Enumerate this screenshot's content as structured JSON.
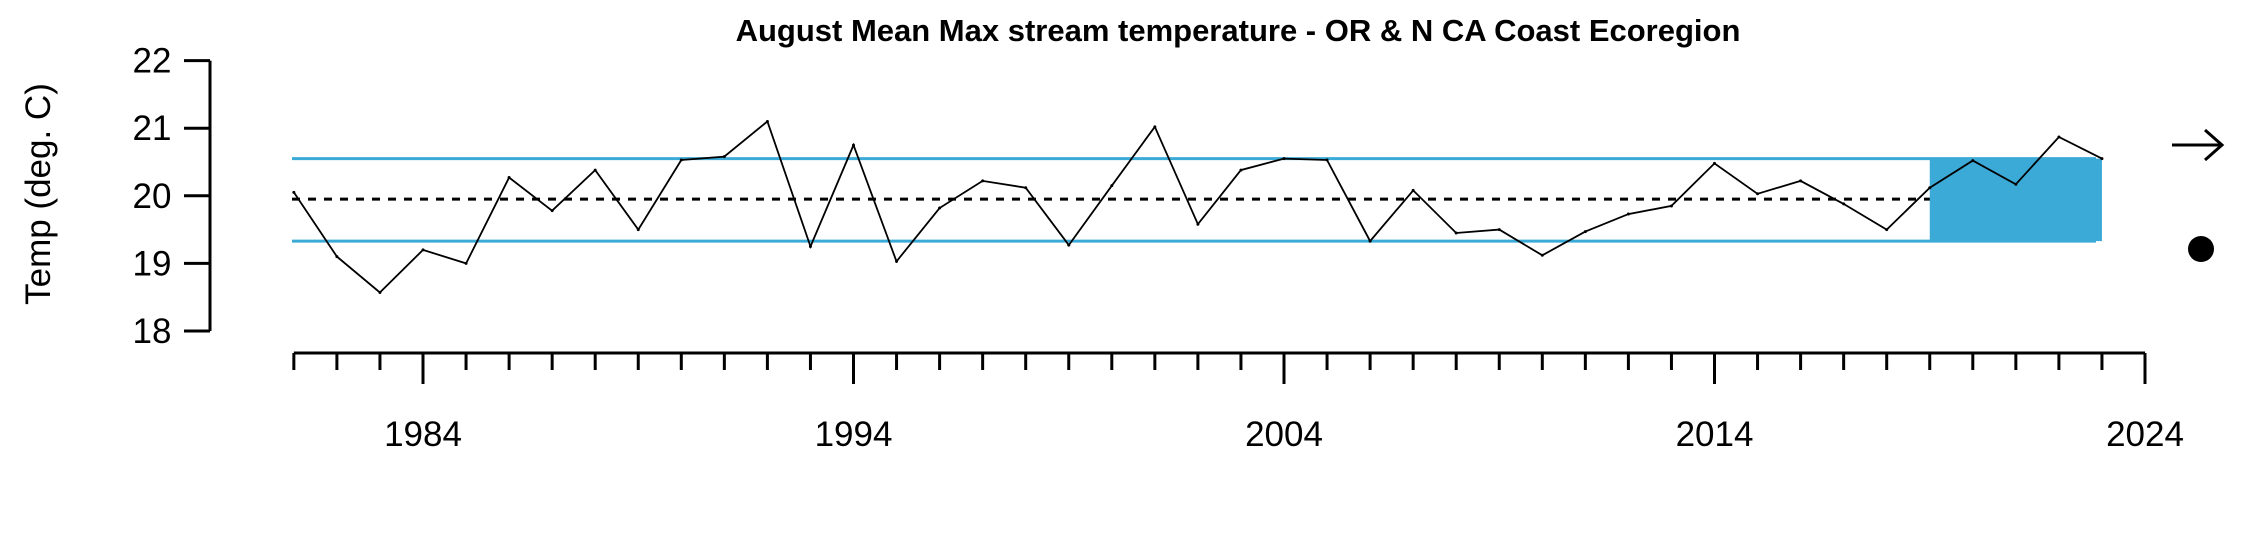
{
  "chart_data": {
    "type": "line",
    "title": "August Mean Max stream temperature - OR & N CA Coast Ecoregion",
    "xlabel": "",
    "ylabel": "Temp (deg. C)",
    "xlim": [
      1980,
      2024
    ],
    "ylim": [
      18,
      22
    ],
    "x_ticks_major": [
      1984,
      1994,
      2004,
      2014,
      2024
    ],
    "x_tick_labels": [
      "1984",
      "1994",
      "2004",
      "2014",
      "2024"
    ],
    "x_ticks_minor_step": 1,
    "y_ticks": [
      18,
      19,
      20,
      21,
      22
    ],
    "y_tick_labels": [
      "18",
      "19",
      "20",
      "21",
      "22"
    ],
    "grid": false,
    "series": [
      {
        "x": [
          1981,
          1982,
          1983,
          1984,
          1985,
          1986,
          1987,
          1988,
          1989,
          1990,
          1991,
          1992,
          1993,
          1994,
          1995,
          1996,
          1997,
          1998,
          1999,
          2000,
          2001,
          2002,
          2003,
          2004,
          2005,
          2006,
          2007,
          2008,
          2009,
          2010,
          2011,
          2012,
          2013,
          2014,
          2015,
          2016,
          2017,
          2018,
          2019,
          2020,
          2021,
          2022,
          2023
        ],
        "values": [
          20.05,
          19.1,
          18.57,
          19.2,
          19.0,
          20.27,
          19.78,
          20.38,
          19.5,
          20.53,
          20.58,
          21.1,
          19.25,
          20.75,
          19.03,
          19.82,
          20.22,
          20.12,
          19.27,
          20.15,
          21.02,
          19.58,
          20.38,
          20.55,
          20.53,
          19.33,
          20.08,
          19.45,
          19.5,
          19.12,
          19.47,
          19.73,
          19.85,
          20.48,
          20.03,
          20.22,
          19.88,
          19.5,
          20.12,
          20.52,
          20.17,
          20.87,
          20.55
        ],
        "color": "#000000"
      }
    ],
    "reference_lines": {
      "mean": 19.95,
      "upper": 20.55,
      "lower": 19.33,
      "mean_style": "dotted",
      "band_color": "#3CAAD7"
    },
    "highlight_region": {
      "x_start": 2019,
      "x_end": 2023,
      "y_start": 19.33,
      "y_end": 20.55,
      "color": "#3CAAD7"
    },
    "trend_indicators": {
      "long_term": "right-arrow",
      "recent": "filled-circle"
    }
  }
}
